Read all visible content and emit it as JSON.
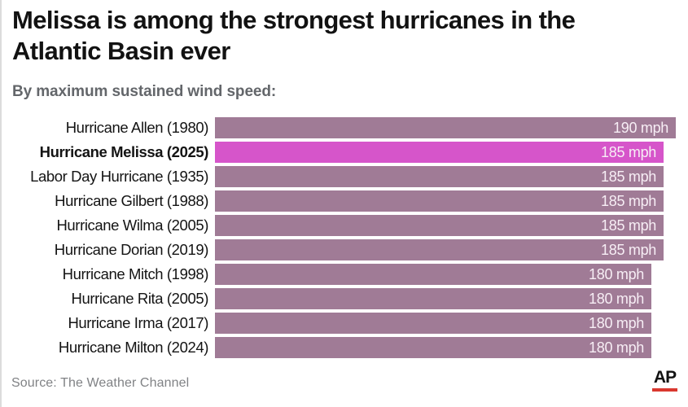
{
  "header": {
    "title": "Melissa is among the strongest hurricanes in the Atlantic Basin ever",
    "subtitle": "By maximum sustained wind speed:"
  },
  "chart_data": {
    "type": "bar",
    "orientation": "horizontal",
    "title": "Melissa is among the strongest hurricanes in the Atlantic Basin ever",
    "subtitle": "By maximum sustained wind speed:",
    "unit": "mph",
    "xlim": [
      0,
      190
    ],
    "grid": false,
    "legend": false,
    "categories": [
      "Hurricane Allen (1980)",
      "Hurricane Melissa (2025)",
      "Labor Day Hurricane (1935)",
      "Hurricane Gilbert (1988)",
      "Hurricane Wilma (2005)",
      "Hurricane Dorian (2019)",
      "Hurricane Mitch (1998)",
      "Hurricane Rita (2005)",
      "Hurricane Irma (2017)",
      "Hurricane Milton (2024)"
    ],
    "values": [
      190,
      185,
      185,
      185,
      185,
      185,
      180,
      180,
      180,
      180
    ],
    "value_labels": [
      "190 mph",
      "185 mph",
      "185 mph",
      "185 mph",
      "185 mph",
      "185 mph",
      "180 mph",
      "180 mph",
      "180 mph",
      "180 mph"
    ],
    "highlight_index": 1,
    "bar_color": "#a07b96",
    "highlight_color": "#d655ca",
    "value_text_color": "#f7eef5"
  },
  "footer": {
    "source": "Source: The Weather Channel",
    "logo": "AP",
    "logo_accent_color": "#d9382f"
  }
}
